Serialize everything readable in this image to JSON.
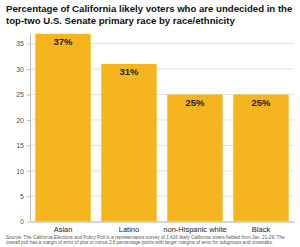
{
  "chart_data": {
    "type": "bar",
    "title": "Percentage of California likely voters who are undecided in the top-two U.S. Senate primary race by race/ethnicity",
    "categories": [
      "Asian",
      "Latino",
      "non-Hispanic white",
      "Black"
    ],
    "values": [
      37,
      31,
      25,
      25
    ],
    "value_labels": [
      "37%",
      "31%",
      "25%",
      "25%"
    ],
    "color": "#f5b51f",
    "ylim": [
      0,
      37
    ],
    "yticks": [
      0,
      5,
      10,
      15,
      20,
      25,
      30,
      35
    ],
    "grid": true,
    "data_labels": true,
    "annotations": [
      "Source: The California Elections and Policy Poll is a representative survey of 1,416 likely California voters fielded from Jan. 21-29. The overall poll has a margin of error of plus or minus 2.6 percentage points with larger margins of error for subgroups and crosstabs."
    ]
  }
}
